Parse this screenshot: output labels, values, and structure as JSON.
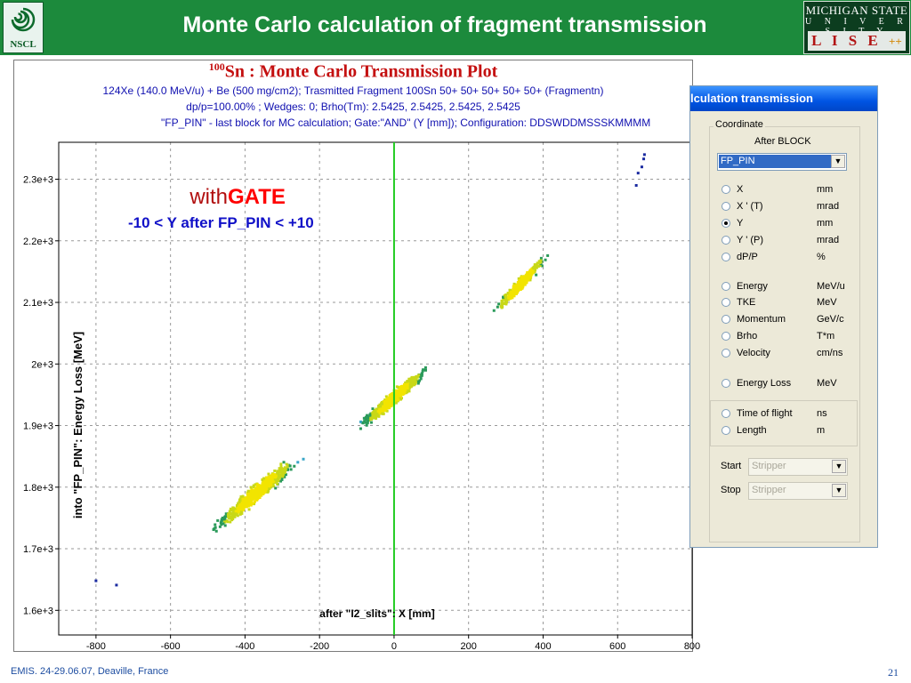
{
  "slide": {
    "title": "Monte Carlo calculation of fragment transmission",
    "nscl_logo_text": "NSCL",
    "msu_line1": "MICHIGAN STATE",
    "msu_line2": "U N I V E R S I T Y",
    "lise_logo_text": "L I S E",
    "lise_logo_suffix": "++",
    "footer": "EMIS.  24-29.06.07,  Deaville, France",
    "page_number": "21",
    "colors": {
      "header_green": "#1c8a3c",
      "title_red": "#c41010",
      "info_blue": "#1010b0",
      "gate_line_green": "#22cc22"
    }
  },
  "plot": {
    "title_sup": "100",
    "title_main": "Sn : Monte Carlo Transmission Plot",
    "info_line1": "124Xe (140.0 MeV/u) + Be (500 mg/cm2);  Trasmitted Fragment 100Sn 50+ 50+ 50+ 50+ 50+ (Fragmentn)",
    "info_line2": "dp/p=100.00% ; Wedges: 0;  Brho(Tm): 2.5425, 2.5425, 2.5425, 2.5425",
    "info_line3": "\"FP_PIN\" - last block for MC calculation;  Gate:\"AND\" (Y [mm]);  Configuration: DDSWDDMSSSKMMMM",
    "annotation_with": "with",
    "annotation_gate": "GATE",
    "annotation_condition": "-10 < Y after FP_PIN < +10"
  },
  "chart_data": {
    "type": "scatter",
    "xlabel": "after \"I2_slits\": X [mm]",
    "ylabel": "into \"FP_PIN\": Energy Loss [MeV]",
    "xlim": [
      -900,
      800
    ],
    "ylim": [
      1560,
      2360
    ],
    "x_ticks": [
      -800,
      -600,
      -400,
      -200,
      0,
      200,
      400,
      600,
      800
    ],
    "y_ticks": [
      1600,
      1700,
      1800,
      1900,
      2000,
      2100,
      2200,
      2300
    ],
    "y_tick_labels": [
      "1.6e+3",
      "1.7e+3",
      "1.8e+3",
      "1.9e+3",
      "2e+3",
      "2.1e+3",
      "2.2e+3",
      "2.3e+3"
    ],
    "grid": true,
    "gate_line_x": 0,
    "clusters": [
      {
        "cx": -370,
        "cy": 1790,
        "dx": 140,
        "dy": 70,
        "counts": 900
      },
      {
        "cx": 0,
        "cy": 1945,
        "dx": 110,
        "dy": 55,
        "counts": 1000
      },
      {
        "cx": 340,
        "cy": 2130,
        "dx": 90,
        "dy": 55,
        "counts": 350
      }
    ],
    "isolated_points": [
      {
        "x": 650,
        "y": 2290
      },
      {
        "x": 655,
        "y": 2310
      },
      {
        "x": 665,
        "y": 2320
      },
      {
        "x": 670,
        "y": 2333
      },
      {
        "x": 672,
        "y": 2340
      },
      {
        "x": -800,
        "y": 1648
      },
      {
        "x": -745,
        "y": 1641
      }
    ]
  },
  "panel": {
    "title": "lculation transmission",
    "group_label": "Coordinate",
    "after_label": "After BLOCK",
    "block_value": "FP_PIN",
    "coordinates": [
      {
        "label": "X",
        "unit": "mm",
        "selected": false
      },
      {
        "label": "X ' (T)",
        "unit": "mrad",
        "selected": false
      },
      {
        "label": "Y",
        "unit": "mm",
        "selected": true
      },
      {
        "label": "Y ' (P)",
        "unit": "mrad",
        "selected": false
      },
      {
        "label": "dP/P",
        "unit": "%",
        "selected": false
      },
      {
        "label": "Energy",
        "unit": "MeV/u",
        "selected": false
      },
      {
        "label": "TKE",
        "unit": "MeV",
        "selected": false
      },
      {
        "label": "Momentum",
        "unit": "GeV/c",
        "selected": false
      },
      {
        "label": "Brho",
        "unit": "T*m",
        "selected": false
      },
      {
        "label": "Velocity",
        "unit": "cm/ns",
        "selected": false
      },
      {
        "label": "Energy Loss",
        "unit": "MeV",
        "selected": false
      },
      {
        "label": "Time of flight",
        "unit": "ns",
        "selected": false
      },
      {
        "label": "Length",
        "unit": "m",
        "selected": false
      }
    ],
    "start_label": "Start",
    "start_value": "Stripper",
    "stop_label": "Stop",
    "stop_value": "Stripper"
  }
}
